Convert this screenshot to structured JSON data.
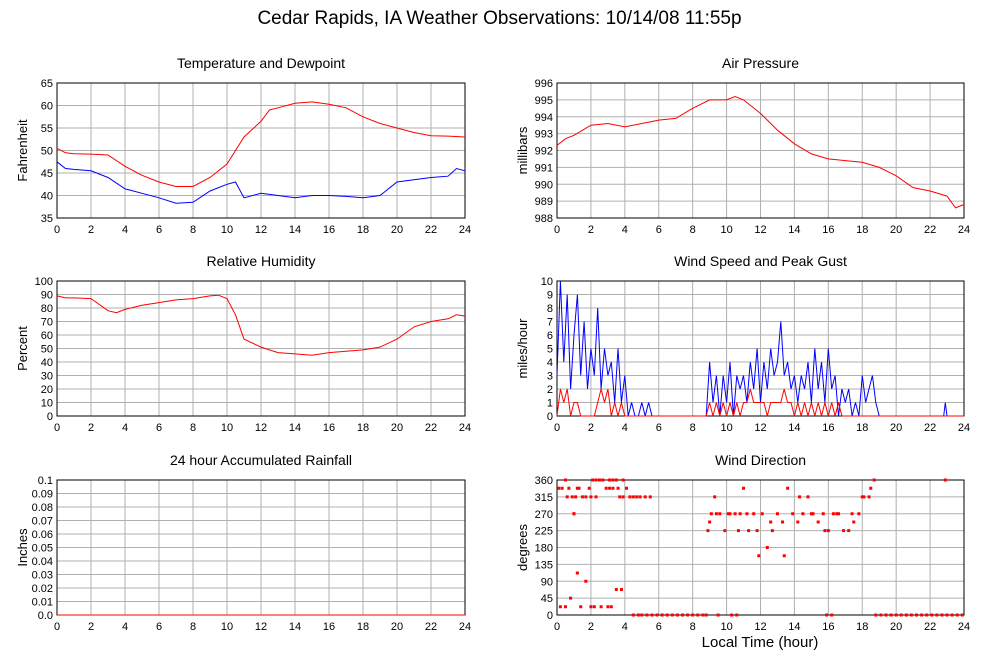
{
  "page": {
    "title": "Cedar Rapids, IA Weather Observations: 10/14/08 11:55p",
    "x_axis_label": "Local Time (hour)"
  },
  "colors": {
    "red": "#ff0000",
    "blue": "#0000ff",
    "grid": "#b0b0b0"
  },
  "chart_data": [
    {
      "id": "temperature",
      "type": "line",
      "title": "Temperature and Dewpoint",
      "ylabel": "Fahrenheit",
      "xlim": [
        0,
        24
      ],
      "ylim": [
        35,
        65
      ],
      "xticks": [
        0,
        2,
        4,
        6,
        8,
        10,
        12,
        14,
        16,
        18,
        20,
        22,
        24
      ],
      "yticks": [
        35,
        40,
        45,
        50,
        55,
        60,
        65
      ],
      "grid": true,
      "series": [
        {
          "color": "red",
          "x": [
            0,
            0.5,
            1,
            2,
            3,
            4,
            5,
            6,
            7,
            8,
            9,
            10,
            10.5,
            11,
            12,
            12.5,
            13,
            14,
            15,
            16,
            17,
            18,
            19,
            20,
            21,
            22,
            23,
            24
          ],
          "y": [
            50.5,
            49.5,
            49.3,
            49.2,
            49,
            46.5,
            44.5,
            43,
            42,
            42,
            44,
            47,
            50,
            53,
            56.5,
            59,
            59.5,
            60.5,
            60.8,
            60.3,
            59.5,
            57.5,
            56,
            55,
            54,
            53.3,
            53.2,
            53
          ]
        },
        {
          "color": "blue",
          "x": [
            0,
            0.5,
            1,
            2,
            3,
            4,
            5,
            6,
            7,
            8,
            9,
            10,
            10.5,
            11,
            12,
            13,
            14,
            15,
            16,
            17,
            18,
            19,
            20,
            21,
            22,
            23,
            23.5,
            24
          ],
          "y": [
            47.5,
            46,
            45.8,
            45.5,
            44,
            41.5,
            40.5,
            39.5,
            38.3,
            38.5,
            41,
            42.5,
            43,
            39.5,
            40.5,
            40,
            39.5,
            40,
            40,
            39.8,
            39.5,
            40,
            43,
            43.5,
            44,
            44.3,
            46,
            45.5
          ]
        }
      ]
    },
    {
      "id": "pressure",
      "type": "line",
      "title": "Air Pressure",
      "ylabel": "millibars",
      "xlim": [
        0,
        24
      ],
      "ylim": [
        988,
        996
      ],
      "xticks": [
        0,
        2,
        4,
        6,
        8,
        10,
        12,
        14,
        16,
        18,
        20,
        22,
        24
      ],
      "yticks": [
        988,
        989,
        990,
        991,
        992,
        993,
        994,
        995,
        996
      ],
      "grid": true,
      "series": [
        {
          "color": "red",
          "x": [
            0,
            0.5,
            1,
            2,
            3,
            4,
            5,
            6,
            7,
            8,
            9,
            10,
            10.5,
            11,
            12,
            13,
            14,
            15,
            16,
            17,
            18,
            19,
            20,
            21,
            22,
            23,
            23.5,
            24
          ],
          "y": [
            992.3,
            992.7,
            992.9,
            993.5,
            993.6,
            993.4,
            993.6,
            993.8,
            993.9,
            994.5,
            995,
            995,
            995.2,
            995,
            994.2,
            993.2,
            992.4,
            991.8,
            991.5,
            991.4,
            991.3,
            991,
            990.5,
            989.8,
            989.6,
            989.3,
            988.6,
            988.8
          ]
        }
      ]
    },
    {
      "id": "humidity",
      "type": "line",
      "title": "Relative Humidity",
      "ylabel": "Percent",
      "xlim": [
        0,
        24
      ],
      "ylim": [
        0,
        100
      ],
      "xticks": [
        0,
        2,
        4,
        6,
        8,
        10,
        12,
        14,
        16,
        18,
        20,
        22,
        24
      ],
      "yticks": [
        0,
        10,
        20,
        30,
        40,
        50,
        60,
        70,
        80,
        90,
        100
      ],
      "grid": true,
      "series": [
        {
          "color": "red",
          "x": [
            0,
            0.5,
            1,
            2,
            3,
            3.5,
            4,
            5,
            6,
            7,
            8,
            9,
            9.5,
            10,
            10.5,
            11,
            12,
            13,
            14,
            15,
            16,
            17,
            18,
            19,
            20,
            21,
            22,
            23,
            23.5,
            24
          ],
          "y": [
            89,
            87.5,
            87.5,
            87,
            78,
            76.5,
            79,
            82,
            84,
            86,
            87,
            89,
            89.5,
            87,
            75,
            57,
            51,
            47,
            46,
            45,
            47,
            48,
            49,
            51,
            57,
            66,
            70,
            72,
            75,
            74
          ]
        }
      ]
    },
    {
      "id": "wind",
      "type": "line",
      "title": "Wind Speed and Peak Gust",
      "ylabel": "miles/hour",
      "xlim": [
        0,
        24
      ],
      "ylim": [
        0,
        10
      ],
      "xticks": [
        0,
        2,
        4,
        6,
        8,
        10,
        12,
        14,
        16,
        18,
        20,
        22,
        24
      ],
      "yticks": [
        0,
        1,
        2,
        3,
        4,
        5,
        6,
        7,
        8,
        9,
        10
      ],
      "grid": true,
      "series": [
        {
          "color": "blue",
          "x": [
            0,
            0.2,
            0.4,
            0.6,
            0.8,
            1,
            1.2,
            1.4,
            1.6,
            1.8,
            2,
            2.2,
            2.4,
            2.6,
            2.8,
            3,
            3.2,
            3.4,
            3.6,
            3.8,
            4,
            4.2,
            4.4,
            4.6,
            4.8,
            5,
            5.2,
            5.4,
            5.6,
            5.8,
            6,
            8.8,
            9,
            9.2,
            9.4,
            9.6,
            9.8,
            10,
            10.2,
            10.4,
            10.6,
            10.8,
            11,
            11.2,
            11.4,
            11.6,
            11.8,
            12,
            12.2,
            12.4,
            12.6,
            12.8,
            13,
            13.2,
            13.4,
            13.6,
            13.8,
            14,
            14.2,
            14.4,
            14.6,
            14.8,
            15,
            15.2,
            15.4,
            15.6,
            15.8,
            16,
            16.2,
            16.4,
            16.6,
            16.8,
            17,
            17.2,
            17.4,
            17.6,
            17.8,
            18,
            18.2,
            18.4,
            18.6,
            18.8,
            19,
            22.7,
            22.8,
            22.9,
            23,
            24
          ],
          "y": [
            3,
            10,
            4,
            9,
            2,
            6,
            9,
            3,
            7,
            2,
            5,
            3,
            8,
            2,
            5,
            3,
            4,
            1,
            5,
            1,
            3,
            0,
            1,
            0,
            0,
            1,
            0,
            1,
            0,
            0,
            0,
            0,
            4,
            1,
            3,
            0,
            3,
            1,
            4,
            0,
            3,
            2,
            3,
            1,
            4,
            2,
            5,
            1,
            4,
            2,
            5,
            3,
            4,
            7,
            3,
            4,
            2,
            3,
            1,
            3,
            2,
            4,
            1,
            5,
            2,
            4,
            1,
            5,
            2,
            3,
            0,
            2,
            1,
            2,
            0,
            1,
            0,
            3,
            1,
            2,
            3,
            1,
            0,
            0,
            0,
            1,
            0,
            0
          ]
        },
        {
          "color": "red",
          "x": [
            0,
            0.2,
            0.4,
            0.6,
            0.8,
            1,
            1.2,
            1.4,
            1.6,
            2,
            2.2,
            2.4,
            2.6,
            2.8,
            3,
            3.2,
            3.4,
            3.6,
            3.8,
            4,
            8.8,
            9,
            9.2,
            9.4,
            9.6,
            9.8,
            10,
            10.2,
            10.4,
            10.6,
            10.8,
            11,
            11.2,
            11.4,
            11.6,
            11.8,
            12,
            12.2,
            12.4,
            12.6,
            12.8,
            13,
            13.2,
            13.4,
            13.6,
            13.8,
            14,
            14.2,
            14.4,
            14.6,
            14.8,
            15,
            15.2,
            15.4,
            15.6,
            15.8,
            16,
            16.2,
            16.4,
            16.6,
            16.8,
            17,
            17.2,
            24
          ],
          "y": [
            0,
            2,
            1,
            2,
            0,
            1,
            1,
            0,
            0,
            0,
            0,
            1,
            2,
            1,
            2,
            0,
            1,
            0,
            1,
            0,
            0,
            1,
            0,
            1,
            0,
            1,
            0,
            1,
            0,
            1,
            0,
            1,
            1,
            2,
            1,
            1,
            1,
            1,
            0,
            1,
            1,
            1,
            1,
            2,
            1,
            1,
            0,
            1,
            0,
            1,
            0,
            1,
            0,
            1,
            0,
            1,
            0,
            1,
            0,
            1,
            0,
            0,
            0,
            0
          ]
        }
      ]
    },
    {
      "id": "rainfall",
      "type": "line",
      "title": "24 hour Accumulated Rainfall",
      "ylabel": "Inches",
      "xlim": [
        0,
        24
      ],
      "ylim": [
        0,
        0.1
      ],
      "xticks": [
        0,
        2,
        4,
        6,
        8,
        10,
        12,
        14,
        16,
        18,
        20,
        22,
        24
      ],
      "yticks": [
        0.0,
        0.01,
        0.02,
        0.03,
        0.04,
        0.05,
        0.06,
        0.07,
        0.08,
        0.09,
        0.1
      ],
      "ytick_labels": [
        "0.0",
        "0.01",
        "0.02",
        "0.03",
        "0.04",
        "0.05",
        "0.06",
        "0.07",
        "0.08",
        "0.09",
        "0.1"
      ],
      "grid": true,
      "series": [
        {
          "color": "red",
          "x": [
            0,
            24
          ],
          "y": [
            0,
            0
          ]
        }
      ]
    },
    {
      "id": "direction",
      "type": "scatter",
      "title": "Wind Direction",
      "ylabel": "degrees",
      "xlim": [
        0,
        24
      ],
      "ylim": [
        0,
        360
      ],
      "xticks": [
        0,
        2,
        4,
        6,
        8,
        10,
        12,
        14,
        16,
        18,
        20,
        22,
        24
      ],
      "yticks": [
        0,
        45,
        90,
        135,
        180,
        225,
        270,
        315,
        360
      ],
      "grid": true,
      "series": [
        {
          "color": "red",
          "x": [
            0.1,
            0.3,
            0.5,
            0.7,
            0.9,
            1.1,
            1.3,
            1.5,
            1.7,
            1.9,
            2.1,
            2.3,
            2.5,
            2.7,
            2.9,
            3.1,
            3.3,
            3.5,
            3.7,
            3.9,
            4.1,
            4.3,
            4.5,
            4.7,
            4.9,
            5.2,
            5.5,
            0.2,
            0.5,
            0.8,
            1.0,
            1.2,
            1.4,
            1.7,
            2.0,
            2.2,
            2.6,
            3.0,
            3.2,
            3.5,
            3.8,
            0.6,
            1.0,
            1.2,
            2.0,
            2.3,
            3.1,
            3.3,
            3.6,
            3.9,
            8.9,
            9.1,
            9.3,
            9.6,
            9.9,
            10.2,
            10.5,
            10.8,
            11.0,
            11.3,
            11.6,
            11.8,
            12.1,
            12.4,
            12.7,
            13.0,
            13.3,
            13.6,
            13.9,
            14.2,
            14.5,
            14.8,
            15.1,
            15.4,
            15.7,
            16.0,
            16.3,
            16.6,
            16.9,
            17.2,
            17.5,
            17.8,
            18.1,
            18.4,
            18.7,
            9.0,
            9.4,
            10.1,
            10.7,
            11.2,
            11.9,
            12.6,
            13.4,
            14.3,
            15.0,
            15.8,
            16.5,
            17.4,
            18.0,
            18.5,
            22.9
          ],
          "y": [
            338,
            338,
            360,
            338,
            315,
            315,
            338,
            315,
            315,
            338,
            360,
            360,
            360,
            360,
            338,
            360,
            360,
            360,
            315,
            360,
            338,
            315,
            315,
            315,
            315,
            315,
            315,
            22,
            22,
            45,
            270,
            112,
            22,
            90,
            22,
            22,
            22,
            22,
            22,
            68,
            68,
            315,
            270,
            338,
            315,
            315,
            338,
            338,
            338,
            315,
            225,
            270,
            315,
            270,
            225,
            270,
            270,
            270,
            338,
            225,
            270,
            225,
            270,
            180,
            225,
            270,
            248,
            338,
            270,
            248,
            270,
            315,
            270,
            248,
            270,
            225,
            270,
            270,
            225,
            225,
            248,
            270,
            315,
            315,
            360,
            248,
            270,
            270,
            225,
            270,
            158,
            248,
            158,
            315,
            270,
            225,
            270,
            270,
            315,
            338,
            360
          ]
        },
        {
          "color": "red",
          "x": [
            4.5,
            4.8,
            5.0,
            5.3,
            5.6,
            5.9,
            6.2,
            6.5,
            6.8,
            7.1,
            7.4,
            7.7,
            8.0,
            8.3,
            8.6,
            8.8,
            9.5,
            10.3,
            10.6,
            15.9,
            16.2,
            18.8,
            19.1,
            19.4,
            19.7,
            20.0,
            20.3,
            20.6,
            20.9,
            21.2,
            21.5,
            21.8,
            22.1,
            22.4,
            22.7,
            23.0,
            23.3,
            23.6,
            23.9
          ],
          "y": [
            0,
            0,
            0,
            0,
            0,
            0,
            0,
            0,
            0,
            0,
            0,
            0,
            0,
            0,
            0,
            0,
            0,
            0,
            0,
            0,
            0,
            0,
            0,
            0,
            0,
            0,
            0,
            0,
            0,
            0,
            0,
            0,
            0,
            0,
            0,
            0,
            0,
            0,
            0
          ]
        }
      ]
    }
  ]
}
